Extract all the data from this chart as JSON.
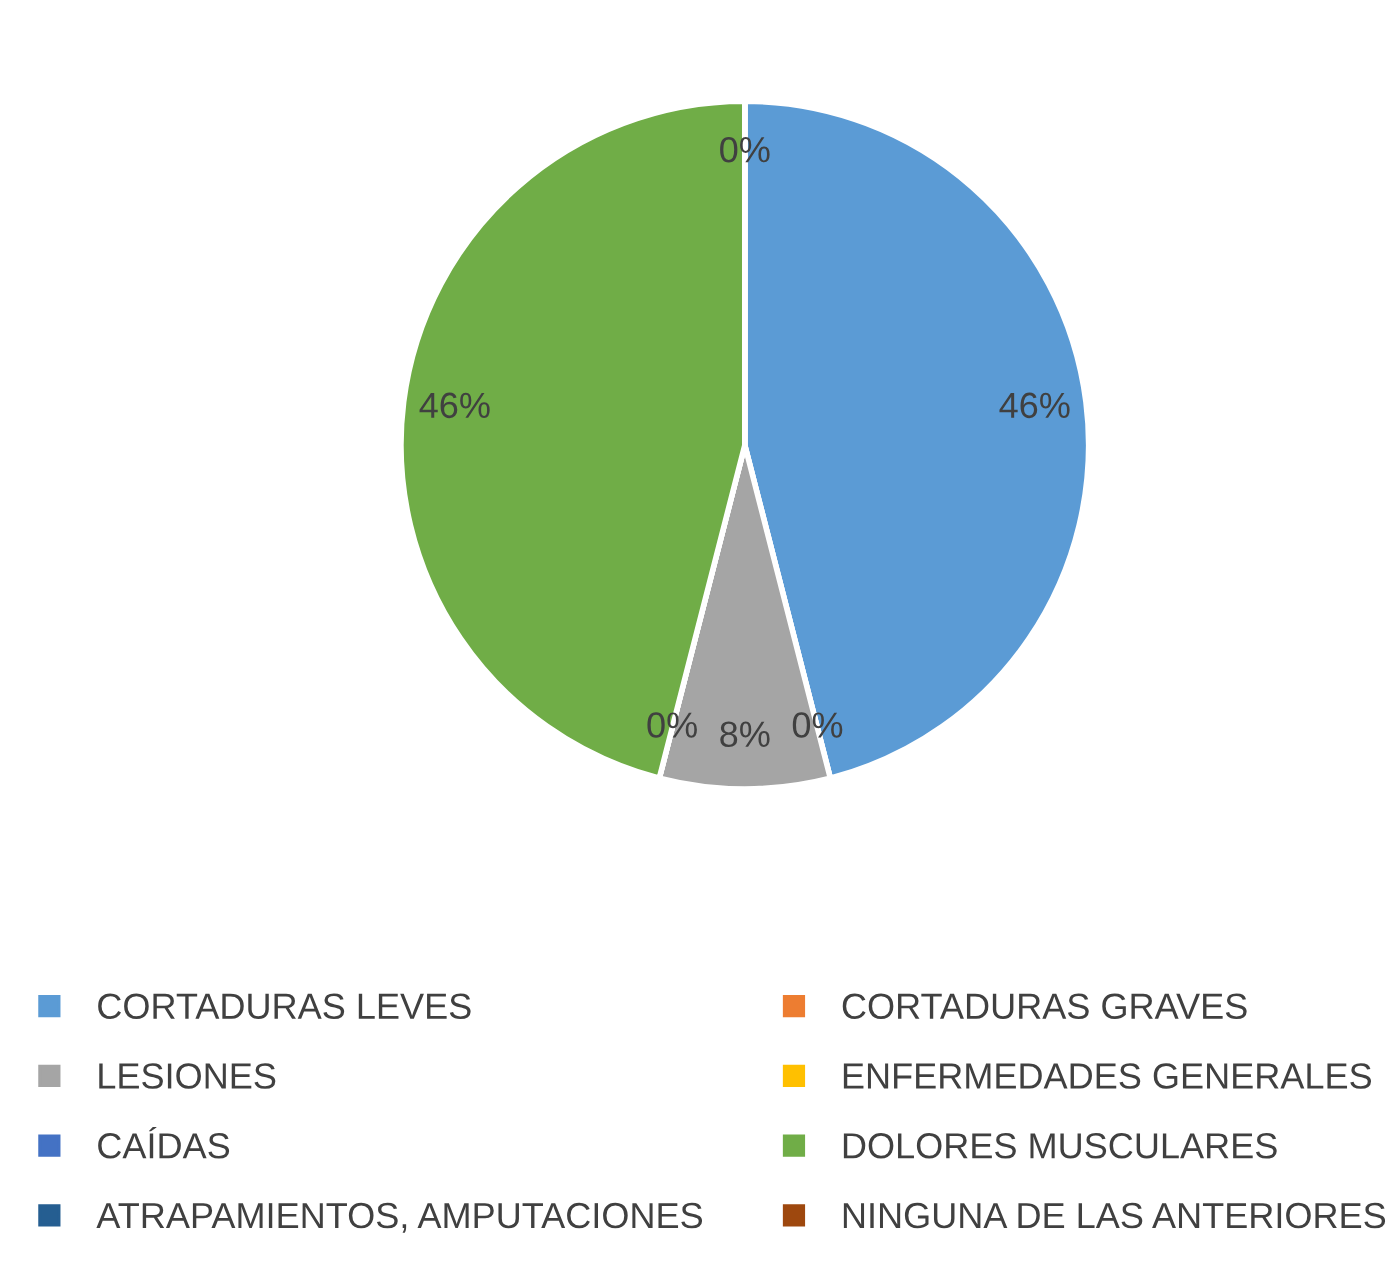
{
  "chart_data": {
    "type": "pie",
    "categories": [
      "CORTADURAS LEVES",
      "CORTADURAS GRAVES",
      "LESIONES",
      "ENFERMEDADES GENERALES",
      "CAÍDAS",
      "DOLORES MUSCULARES",
      "ATRAPAMIENTOS, AMPUTACIONES",
      "NINGUNA DE LAS ANTERIORES"
    ],
    "values": [
      46,
      0,
      8,
      0,
      0,
      46,
      0,
      0
    ],
    "value_labels": [
      "46%",
      "0%",
      "8%",
      "0%",
      null,
      "46%",
      "0%",
      null
    ],
    "colors": [
      "#5b9bd5",
      "#ed7d31",
      "#a5a5a5",
      "#ffc000",
      "#4472c4",
      "#70ad47",
      "#255e91",
      "#9e480e"
    ],
    "legend": "bottom"
  }
}
